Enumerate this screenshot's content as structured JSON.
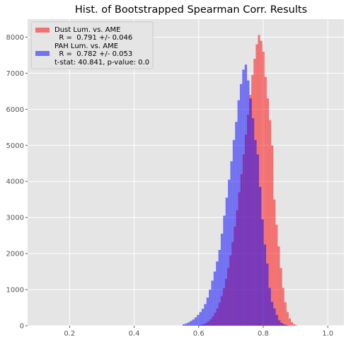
{
  "chart_data": {
    "type": "bar",
    "title": "Hist. of Bootstrapped Spearman Corr. Results",
    "xlabel": "",
    "ylabel": "",
    "xlim": [
      0.07,
      1.05
    ],
    "ylim": [
      0,
      8500
    ],
    "xticks": [
      0.2,
      0.4,
      0.6,
      0.8,
      1.0
    ],
    "xtick_labels": [
      "0.2",
      "0.4",
      "0.6",
      "0.8",
      "1.0"
    ],
    "yticks": [
      0,
      1000,
      2000,
      3000,
      4000,
      5000,
      6000,
      7000,
      8000
    ],
    "ytick_labels": [
      "0",
      "1000",
      "2000",
      "3000",
      "4000",
      "5000",
      "6000",
      "7000",
      "8000"
    ],
    "grid": true,
    "legend_position": "top-left",
    "legend_lines": [
      "Dust Lum. vs. AME",
      "  R =  0.791 +/- 0.046",
      "PAH Lum. vs. AME",
      "  R =  0.782 +/- 0.053",
      "t-stat: 40.841, p-value: 0.0"
    ],
    "colors": {
      "background": "#e5e5e5",
      "grid": "#ffffff",
      "dust": "#ff0000",
      "pah": "#0000ff"
    },
    "opacity": 0.5,
    "series": [
      {
        "name": "Dust Lum. vs. AME",
        "color": "#ff0000",
        "bin_width": 0.0068,
        "bin_start": 0.6,
        "values": [
          15,
          30,
          50,
          80,
          120,
          180,
          260,
          360,
          480,
          640,
          820,
          1040,
          1300,
          1600,
          1950,
          2320,
          2750,
          3200,
          3700,
          4200,
          4750,
          5300,
          5850,
          6400,
          6950,
          7400,
          7800,
          8060,
          7900,
          7600,
          6900,
          6300,
          5700,
          5000,
          3500,
          2800,
          2200,
          1600,
          1050,
          650,
          380,
          200,
          100,
          45,
          15
        ]
      },
      {
        "name": "PAH Lum. vs. AME",
        "color": "#0000ff",
        "bin_width": 0.0074,
        "bin_start": 0.55,
        "values": [
          40,
          60,
          90,
          130,
          170,
          230,
          300,
          380,
          470,
          600,
          780,
          1000,
          1250,
          1500,
          1780,
          2100,
          2550,
          3050,
          3550,
          4050,
          4560,
          5150,
          5650,
          6250,
          6700,
          7100,
          7240,
          6800,
          6300,
          5750,
          5150,
          4750,
          3850,
          2950,
          2250,
          1720,
          1050,
          660,
          480,
          300,
          150,
          80,
          40,
          20
        ]
      }
    ]
  }
}
